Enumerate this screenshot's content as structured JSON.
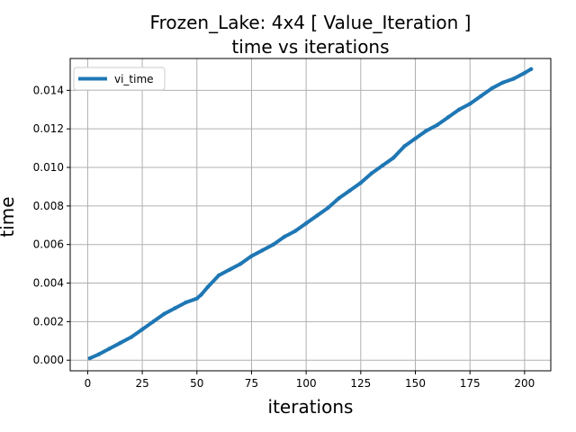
{
  "chart_data": {
    "type": "line",
    "title_line1": "Frozen_Lake: 4x4 [ Value_Iteration ]",
    "title_line2": "time vs iterations",
    "xlabel": "iterations",
    "ylabel": "time",
    "xlim": [
      -8,
      212
    ],
    "ylim": [
      -0.00055,
      0.01565
    ],
    "x_ticks": [
      0,
      25,
      50,
      75,
      100,
      125,
      150,
      175,
      200
    ],
    "x_tick_labels": [
      "0",
      "25",
      "50",
      "75",
      "100",
      "125",
      "150",
      "175",
      "200"
    ],
    "y_ticks": [
      0.0,
      0.002,
      0.004,
      0.006,
      0.008,
      0.01,
      0.012,
      0.014
    ],
    "y_tick_labels": [
      "0.000",
      "0.002",
      "0.004",
      "0.006",
      "0.008",
      "0.010",
      "0.012",
      "0.014"
    ],
    "grid": true,
    "legend_placement": "upper-left",
    "series": [
      {
        "name": "vi_time",
        "color": "#1f77b4",
        "x": [
          1,
          5,
          10,
          15,
          20,
          25,
          30,
          35,
          40,
          45,
          50,
          52,
          55,
          60,
          65,
          70,
          75,
          80,
          85,
          90,
          95,
          100,
          105,
          110,
          115,
          120,
          125,
          130,
          135,
          140,
          145,
          150,
          155,
          160,
          165,
          170,
          175,
          180,
          185,
          190,
          195,
          200,
          203
        ],
        "y": [
          0.0001,
          0.0003,
          0.0006,
          0.0009,
          0.0012,
          0.0016,
          0.002,
          0.0024,
          0.0027,
          0.003,
          0.0032,
          0.0034,
          0.0038,
          0.0044,
          0.0047,
          0.005,
          0.0054,
          0.0057,
          0.006,
          0.0064,
          0.0067,
          0.0071,
          0.0075,
          0.0079,
          0.0084,
          0.0088,
          0.0092,
          0.0097,
          0.0101,
          0.0105,
          0.0111,
          0.0115,
          0.0119,
          0.0122,
          0.0126,
          0.013,
          0.0133,
          0.0137,
          0.0141,
          0.0144,
          0.0146,
          0.0149,
          0.0151
        ]
      }
    ]
  }
}
